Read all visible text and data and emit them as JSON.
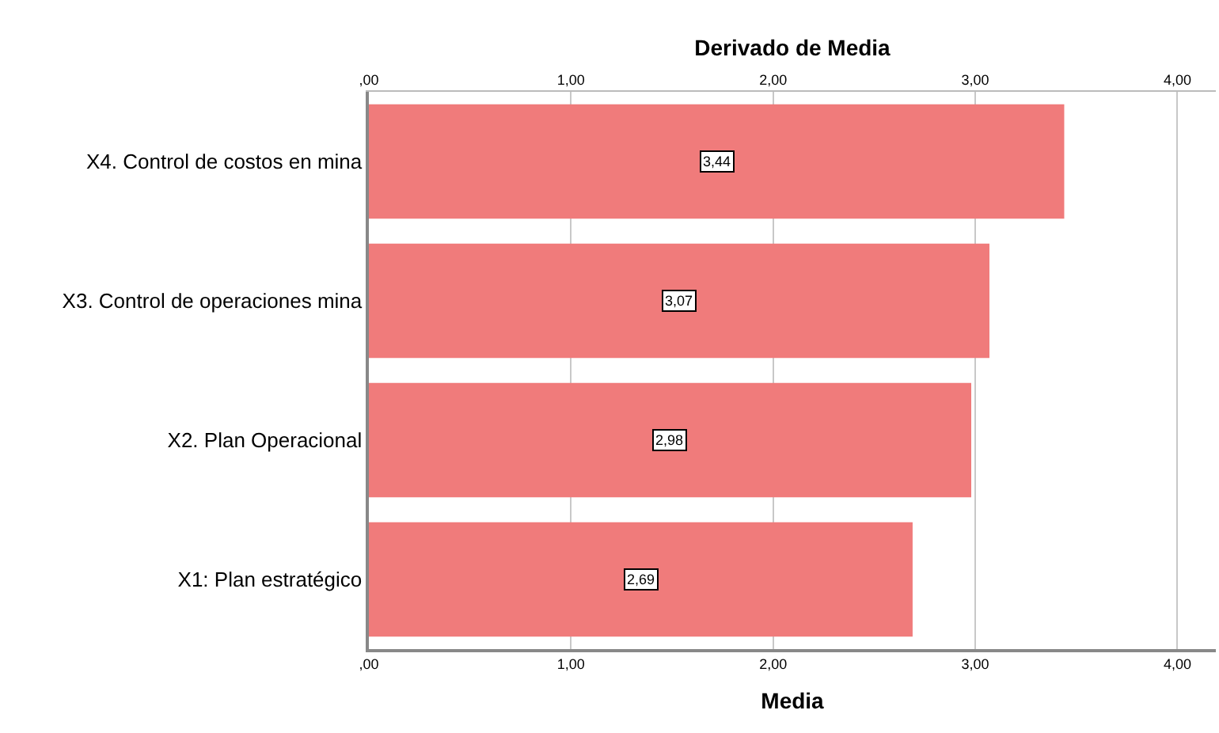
{
  "chart_data": {
    "type": "bar",
    "orientation": "horizontal",
    "x2label": "Derivado de Media",
    "xlabel": "Media",
    "categories": [
      "X4. Control de costos en mina",
      "X3. Control de operaciones mina",
      "X2. Plan Operacional",
      "X1: Plan estratégico"
    ],
    "values": [
      3.44,
      3.07,
      2.98,
      2.69
    ],
    "value_labels": [
      "3,44",
      "3,07",
      "2,98",
      "2,69"
    ],
    "color": "#f07b7b",
    "xlim": [
      0,
      4.19
    ],
    "xticks": [
      {
        "value": 0,
        "label": ",00"
      },
      {
        "value": 1,
        "label": "1,00"
      },
      {
        "value": 2,
        "label": "2,00"
      },
      {
        "value": 3,
        "label": "3,00"
      },
      {
        "value": 4,
        "label": "4,00"
      }
    ],
    "x2lim": [
      0,
      4.19
    ],
    "x2ticks": [
      {
        "value": 0,
        "label": ",00"
      },
      {
        "value": 1,
        "label": "1,00"
      },
      {
        "value": 2,
        "label": "2,00"
      },
      {
        "value": 3,
        "label": "3,00"
      },
      {
        "value": 4,
        "label": "4,00"
      }
    ],
    "grid": "x",
    "legend": false
  }
}
